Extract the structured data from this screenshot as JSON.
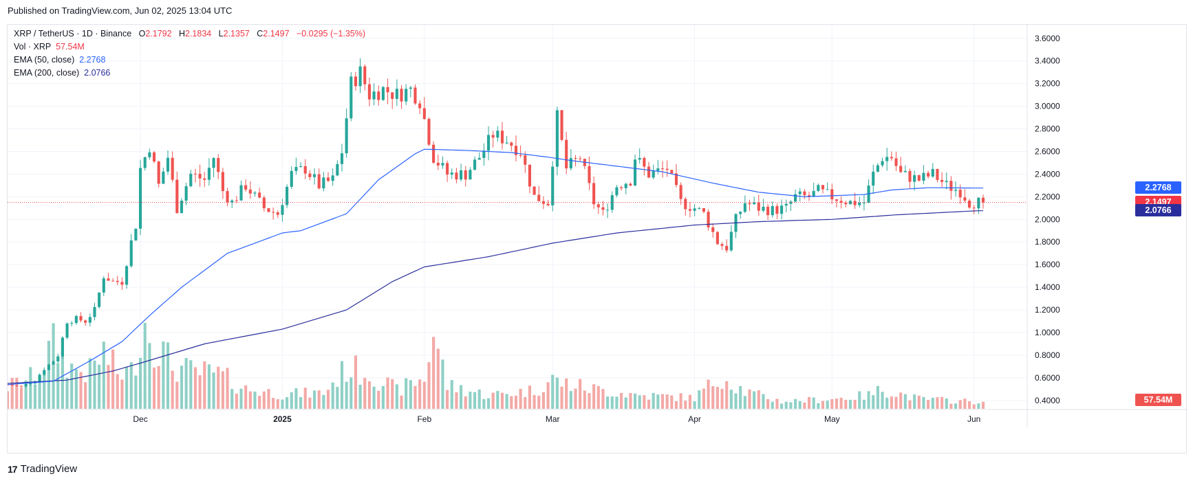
{
  "header": {
    "published": "Published on TradingView.com, Jun 02, 2025 13:04 UTC"
  },
  "legend": {
    "symbol": "XRP / TetherUS · 1D · Binance",
    "open_label": "O",
    "open": "2.1792",
    "high_label": "H",
    "high": "2.1834",
    "low_label": "L",
    "low": "2.1357",
    "close_label": "C",
    "close": "2.1497",
    "change": "−0.0295 (−1.35%)",
    "vol_label": "Vol · XRP",
    "vol_value": "57.54M",
    "ema50_label": "EMA (50, close)",
    "ema50_value": "2.2768",
    "ema200_label": "EMA (200, close)",
    "ema200_value": "2.0766"
  },
  "price_tags": {
    "ema50": "2.2768",
    "close": "2.1497",
    "ema200": "2.0766",
    "volume": "57.54M"
  },
  "brand": {
    "name": "TradingView"
  },
  "colors": {
    "up": "#26a69a",
    "down": "#ef5350",
    "up_vol": "#8fd0c6",
    "down_vol": "#f3a9a6",
    "ema50": "#2962ff",
    "ema200": "#2a2e9c",
    "close_line": "#f23645"
  },
  "chart_data": {
    "type": "candlestick",
    "symbol": "XRP / TetherUS",
    "interval": "1D",
    "exchange": "Binance",
    "y_ticks": [
      "0.4000",
      "0.6000",
      "0.8000",
      "1.0000",
      "1.2000",
      "1.4000",
      "1.6000",
      "1.8000",
      "2.0000",
      "2.2000",
      "2.4000",
      "2.6000",
      "2.8000",
      "3.0000",
      "3.2000",
      "3.4000",
      "3.6000"
    ],
    "ylim": [
      0.32,
      3.72
    ],
    "x_ticks": [
      {
        "label": "Dec",
        "date": "2024-12-01",
        "bold": false
      },
      {
        "label": "2025",
        "date": "2025-01-01",
        "bold": true
      },
      {
        "label": "Feb",
        "date": "2025-02-01",
        "bold": false
      },
      {
        "label": "Mar",
        "date": "2025-03-01",
        "bold": false
      },
      {
        "label": "Apr",
        "date": "2025-04-01",
        "bold": false
      },
      {
        "label": "May",
        "date": "2025-05-01",
        "bold": false
      },
      {
        "label": "Jun",
        "date": "2025-06-01",
        "bold": false
      }
    ],
    "x_range": [
      "2024-11-02",
      "2025-06-03"
    ],
    "price_keyframes": [
      [
        "2024-11-02",
        0.54
      ],
      [
        "2024-11-05",
        0.52
      ],
      [
        "2024-11-08",
        0.58
      ],
      [
        "2024-11-10",
        0.68
      ],
      [
        "2024-11-12",
        0.75
      ],
      [
        "2024-11-13",
        0.8
      ],
      [
        "2024-11-15",
        1.1
      ],
      [
        "2024-11-17",
        1.12
      ],
      [
        "2024-11-19",
        1.1
      ],
      [
        "2024-11-21",
        1.2
      ],
      [
        "2024-11-23",
        1.5
      ],
      [
        "2024-11-25",
        1.45
      ],
      [
        "2024-11-27",
        1.45
      ],
      [
        "2024-11-29",
        1.8
      ],
      [
        "2024-11-30",
        1.95
      ],
      [
        "2024-12-01",
        2.45
      ],
      [
        "2024-12-03",
        2.65
      ],
      [
        "2024-12-05",
        2.3
      ],
      [
        "2024-12-07",
        2.55
      ],
      [
        "2024-12-09",
        2.1
      ],
      [
        "2024-12-12",
        2.4
      ],
      [
        "2024-12-15",
        2.35
      ],
      [
        "2024-12-17",
        2.55
      ],
      [
        "2024-12-19",
        2.25
      ],
      [
        "2024-12-21",
        2.15
      ],
      [
        "2024-12-24",
        2.3
      ],
      [
        "2024-12-28",
        2.1
      ],
      [
        "2024-12-31",
        2.05
      ],
      [
        "2025-01-03",
        2.4
      ],
      [
        "2025-01-06",
        2.45
      ],
      [
        "2025-01-09",
        2.3
      ],
      [
        "2025-01-12",
        2.35
      ],
      [
        "2025-01-14",
        2.6
      ],
      [
        "2025-01-16",
        3.2
      ],
      [
        "2025-01-18",
        3.3
      ],
      [
        "2025-01-20",
        3.1
      ],
      [
        "2025-01-23",
        3.15
      ],
      [
        "2025-01-26",
        3.1
      ],
      [
        "2025-01-29",
        3.15
      ],
      [
        "2025-01-31",
        3.05
      ],
      [
        "2025-02-03",
        2.55
      ],
      [
        "2025-02-06",
        2.4
      ],
      [
        "2025-02-10",
        2.4
      ],
      [
        "2025-02-13",
        2.55
      ],
      [
        "2025-02-16",
        2.75
      ],
      [
        "2025-02-19",
        2.7
      ],
      [
        "2025-02-22",
        2.6
      ],
      [
        "2025-02-25",
        2.2
      ],
      [
        "2025-02-28",
        2.15
      ],
      [
        "2025-03-02",
        2.9
      ],
      [
        "2025-03-04",
        2.45
      ],
      [
        "2025-03-07",
        2.55
      ],
      [
        "2025-03-10",
        2.15
      ],
      [
        "2025-03-12",
        2.05
      ],
      [
        "2025-03-15",
        2.3
      ],
      [
        "2025-03-18",
        2.35
      ],
      [
        "2025-03-19",
        2.55
      ],
      [
        "2025-03-22",
        2.4
      ],
      [
        "2025-03-26",
        2.45
      ],
      [
        "2025-03-29",
        2.15
      ],
      [
        "2025-04-01",
        2.1
      ],
      [
        "2025-04-03",
        2.05
      ],
      [
        "2025-04-06",
        1.8
      ],
      [
        "2025-04-08",
        1.75
      ],
      [
        "2025-04-10",
        2.0
      ],
      [
        "2025-04-12",
        2.15
      ],
      [
        "2025-04-15",
        2.1
      ],
      [
        "2025-04-18",
        2.08
      ],
      [
        "2025-04-21",
        2.1
      ],
      [
        "2025-04-23",
        2.2
      ],
      [
        "2025-04-26",
        2.2
      ],
      [
        "2025-04-28",
        2.25
      ],
      [
        "2025-05-01",
        2.2
      ],
      [
        "2025-05-05",
        2.15
      ],
      [
        "2025-05-08",
        2.15
      ],
      [
        "2025-05-10",
        2.4
      ],
      [
        "2025-05-12",
        2.55
      ],
      [
        "2025-05-14",
        2.55
      ],
      [
        "2025-05-16",
        2.4
      ],
      [
        "2025-05-20",
        2.35
      ],
      [
        "2025-05-23",
        2.4
      ],
      [
        "2025-05-26",
        2.3
      ],
      [
        "2025-05-29",
        2.25
      ],
      [
        "2025-05-31",
        2.15
      ],
      [
        "2025-06-02",
        2.15
      ]
    ],
    "ema50_keyframes": [
      [
        "2024-11-02",
        0.54
      ],
      [
        "2024-11-12",
        0.57
      ],
      [
        "2024-11-20",
        0.75
      ],
      [
        "2024-11-27",
        0.92
      ],
      [
        "2024-12-03",
        1.15
      ],
      [
        "2024-12-10",
        1.4
      ],
      [
        "2024-12-20",
        1.7
      ],
      [
        "2025-01-01",
        1.88
      ],
      [
        "2025-01-05",
        1.9
      ],
      [
        "2025-01-15",
        2.05
      ],
      [
        "2025-01-22",
        2.35
      ],
      [
        "2025-01-30",
        2.58
      ],
      [
        "2025-02-01",
        2.62
      ],
      [
        "2025-02-10",
        2.61
      ],
      [
        "2025-02-20",
        2.59
      ],
      [
        "2025-02-28",
        2.55
      ],
      [
        "2025-03-05",
        2.52
      ],
      [
        "2025-03-15",
        2.47
      ],
      [
        "2025-03-25",
        2.42
      ],
      [
        "2025-04-05",
        2.32
      ],
      [
        "2025-04-15",
        2.24
      ],
      [
        "2025-04-25",
        2.2
      ],
      [
        "2025-05-08",
        2.22
      ],
      [
        "2025-05-14",
        2.26
      ],
      [
        "2025-05-22",
        2.28
      ],
      [
        "2025-06-02",
        2.2768
      ]
    ],
    "ema200_keyframes": [
      [
        "2024-11-02",
        0.55
      ],
      [
        "2024-11-15",
        0.58
      ],
      [
        "2024-11-25",
        0.66
      ],
      [
        "2024-12-01",
        0.73
      ],
      [
        "2024-12-15",
        0.9
      ],
      [
        "2025-01-01",
        1.03
      ],
      [
        "2025-01-15",
        1.2
      ],
      [
        "2025-01-25",
        1.45
      ],
      [
        "2025-02-01",
        1.58
      ],
      [
        "2025-02-15",
        1.67
      ],
      [
        "2025-03-01",
        1.79
      ],
      [
        "2025-03-15",
        1.88
      ],
      [
        "2025-04-01",
        1.95
      ],
      [
        "2025-04-15",
        1.98
      ],
      [
        "2025-05-01",
        2.0
      ],
      [
        "2025-05-15",
        2.04
      ],
      [
        "2025-06-02",
        2.0766
      ]
    ],
    "volume_keyframes_millions": [
      [
        "2024-11-02",
        180
      ],
      [
        "2024-11-08",
        260
      ],
      [
        "2024-11-12",
        520
      ],
      [
        "2024-11-16",
        330
      ],
      [
        "2024-11-20",
        300
      ],
      [
        "2024-11-23",
        460
      ],
      [
        "2024-11-26",
        290
      ],
      [
        "2024-11-29",
        300
      ],
      [
        "2024-12-02",
        720
      ],
      [
        "2024-12-04",
        560
      ],
      [
        "2024-12-08",
        350
      ],
      [
        "2024-12-12",
        300
      ],
      [
        "2024-12-18",
        280
      ],
      [
        "2024-12-24",
        160
      ],
      [
        "2025-01-01",
        120
      ],
      [
        "2025-01-10",
        130
      ],
      [
        "2025-01-15",
        330
      ],
      [
        "2025-01-20",
        290
      ],
      [
        "2025-01-26",
        150
      ],
      [
        "2025-02-01",
        250
      ],
      [
        "2025-02-03",
        630
      ],
      [
        "2025-02-06",
        190
      ],
      [
        "2025-02-15",
        110
      ],
      [
        "2025-02-25",
        150
      ],
      [
        "2025-03-01",
        240
      ],
      [
        "2025-03-03",
        210
      ],
      [
        "2025-03-10",
        160
      ],
      [
        "2025-03-20",
        110
      ],
      [
        "2025-04-01",
        90
      ],
      [
        "2025-04-07",
        270
      ],
      [
        "2025-04-12",
        140
      ],
      [
        "2025-04-20",
        60
      ],
      [
        "2025-05-01",
        80
      ],
      [
        "2025-05-09",
        110
      ],
      [
        "2025-05-12",
        160
      ],
      [
        "2025-05-20",
        80
      ],
      [
        "2025-06-02",
        57.54
      ]
    ],
    "last_close": 2.1497,
    "last_volume_millions": 57.54
  }
}
